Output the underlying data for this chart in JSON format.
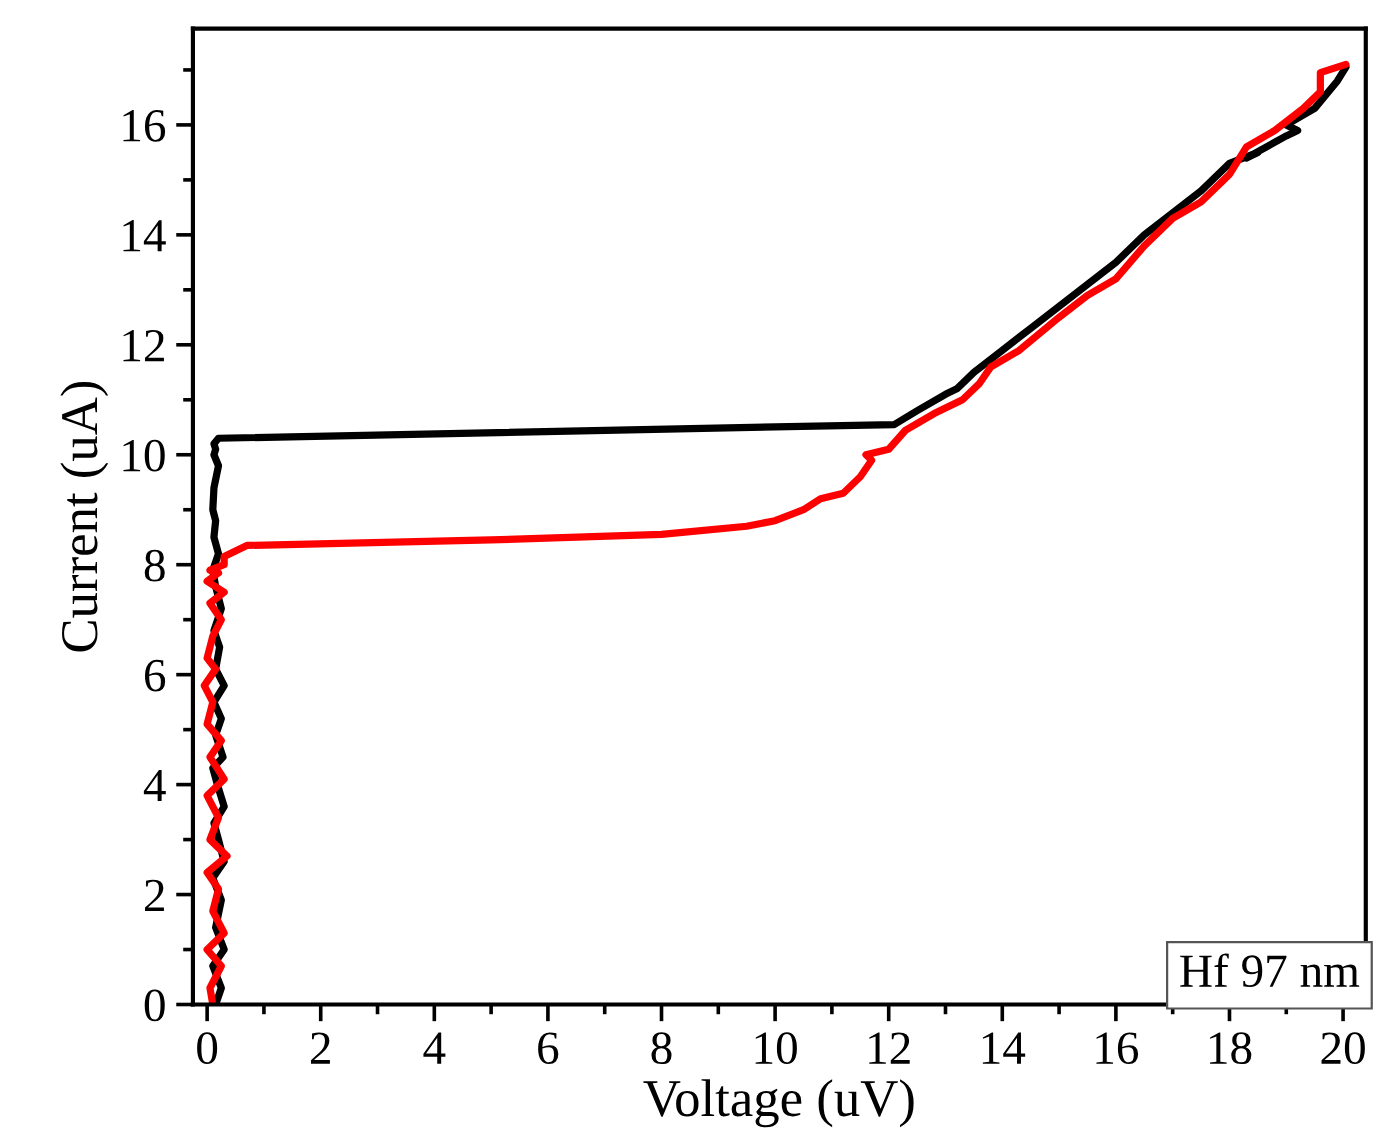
{
  "chart_data": {
    "type": "line",
    "xlabel": "Voltage (uV)",
    "ylabel": "Current (uA)",
    "xlim": [
      -0.25,
      20.4
    ],
    "ylim": [
      0,
      17.75
    ],
    "xticks": [
      0,
      2,
      4,
      6,
      8,
      10,
      12,
      14,
      16,
      18,
      20
    ],
    "yticks": [
      0,
      2,
      4,
      6,
      8,
      10,
      12,
      14,
      16
    ],
    "grid": false,
    "legend": false,
    "marker": "none",
    "line_style": "solid",
    "annotations": [
      "Hf 97 nm"
    ],
    "series": [
      {
        "color": "#000000",
        "x": [
          0.15,
          0.25,
          0.1,
          0.3,
          0.15,
          0.25,
          0.1,
          0.3,
          0.2,
          0.12,
          0.3,
          0.18,
          0.1,
          0.28,
          0.15,
          0.25,
          0.12,
          0.3,
          0.15,
          0.22,
          0.12,
          0.25,
          0.15,
          0.1,
          0.2,
          0.12,
          0.15,
          0.1,
          0.12,
          0.2,
          0.12,
          0.15,
          0.12,
          0.2,
          0.2,
          12.1,
          12.5,
          13.0,
          13.2,
          13.5,
          14.0,
          14.5,
          15.0,
          15.5,
          16.0,
          16.5,
          17.0,
          17.5,
          18.0,
          18.5,
          18.3,
          19.0,
          19.2,
          19.0,
          19.5,
          19.9,
          20.05
        ],
        "values": [
          0.0,
          0.3,
          0.7,
          1.0,
          1.4,
          1.9,
          2.3,
          2.6,
          3.0,
          3.3,
          3.6,
          4.0,
          4.3,
          4.5,
          4.9,
          5.2,
          5.5,
          5.8,
          6.1,
          6.5,
          6.8,
          7.2,
          7.6,
          7.9,
          8.2,
          8.5,
          8.8,
          9.0,
          9.4,
          9.8,
          10.0,
          10.1,
          10.2,
          10.3,
          10.3,
          10.55,
          10.8,
          11.1,
          11.2,
          11.5,
          11.9,
          12.3,
          12.7,
          13.1,
          13.5,
          14.0,
          14.4,
          14.8,
          15.3,
          15.5,
          15.4,
          15.8,
          15.9,
          16.0,
          16.3,
          16.8,
          17.05
        ]
      },
      {
        "color": "#ff0000",
        "x": [
          0.1,
          0.05,
          0.25,
          0.0,
          0.3,
          0.1,
          0.2,
          0.0,
          0.35,
          0.05,
          0.2,
          0.0,
          0.3,
          0.05,
          0.25,
          0.0,
          0.1,
          -0.05,
          0.15,
          0.0,
          0.1,
          0.25,
          0.05,
          0.3,
          0.0,
          0.2,
          0.05,
          0.3,
          0.3,
          0.7,
          5.0,
          8.0,
          9.5,
          10.0,
          10.5,
          10.8,
          11.2,
          11.5,
          11.7,
          11.6,
          12.0,
          12.3,
          12.8,
          13.3,
          13.6,
          13.8,
          14.3,
          15.0,
          15.5,
          16.0,
          16.5,
          17.0,
          17.5,
          18.0,
          18.3,
          18.8,
          19.3,
          19.6,
          19.6,
          20.05
        ],
        "values": [
          0.0,
          0.3,
          0.7,
          1.0,
          1.3,
          1.7,
          2.1,
          2.4,
          2.7,
          3.0,
          3.4,
          3.8,
          4.1,
          4.5,
          4.8,
          5.1,
          5.5,
          5.8,
          6.1,
          6.3,
          6.7,
          7.0,
          7.3,
          7.5,
          7.7,
          7.85,
          7.9,
          8.0,
          8.15,
          8.35,
          8.45,
          8.55,
          8.7,
          8.8,
          9.0,
          9.2,
          9.3,
          9.6,
          9.9,
          10.0,
          10.1,
          10.45,
          10.75,
          11.0,
          11.3,
          11.6,
          11.9,
          12.5,
          12.9,
          13.2,
          13.8,
          14.3,
          14.6,
          15.1,
          15.6,
          15.9,
          16.3,
          16.6,
          16.95,
          17.1
        ]
      }
    ]
  }
}
